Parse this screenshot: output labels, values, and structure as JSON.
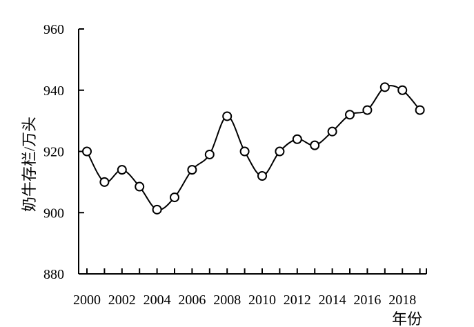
{
  "chart_data": {
    "type": "line",
    "title": "",
    "xlabel": "年份",
    "ylabel": "奶牛存栏/万头",
    "x": [
      2000,
      2001,
      2002,
      2003,
      2004,
      2005,
      2006,
      2007,
      2008,
      2009,
      2010,
      2011,
      2012,
      2013,
      2014,
      2015,
      2016,
      2017,
      2018,
      2019
    ],
    "values": [
      920,
      910,
      914,
      908.5,
      901,
      905,
      914,
      919,
      931.5,
      920,
      912,
      920,
      924,
      922,
      926.5,
      932,
      933.5,
      941,
      940,
      933.5
    ],
    "xticks": [
      "2000",
      "2002",
      "2004",
      "2006",
      "2008",
      "2010",
      "2012",
      "2014",
      "2016",
      "2018"
    ],
    "yticks": [
      "880",
      "900",
      "920",
      "940",
      "960"
    ],
    "xlim": [
      2000,
      2019
    ],
    "ylim": [
      880,
      960
    ],
    "grid": false,
    "marker": "open-circle",
    "line_color": "#000000"
  }
}
